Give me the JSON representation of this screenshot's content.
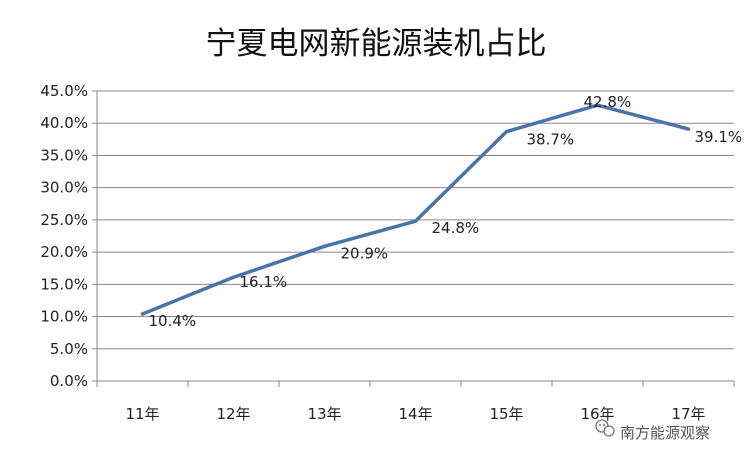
{
  "chart_data": {
    "type": "line",
    "title": "宁夏电网新能源装机占比",
    "categories": [
      "11年",
      "12年",
      "13年",
      "14年",
      "15年",
      "16年",
      "17年"
    ],
    "series": [
      {
        "values": [
          10.4,
          16.1,
          20.9,
          24.8,
          38.7,
          42.8,
          39.1
        ],
        "labels": [
          "10.4%",
          "16.1%",
          "20.9%",
          "24.8%",
          "38.7%",
          "42.8%",
          "39.1%"
        ],
        "color": "#4a73a8"
      }
    ],
    "ylim": [
      0,
      45
    ],
    "yticks": [
      "0.0%",
      "5.0%",
      "10.0%",
      "15.0%",
      "20.0%",
      "25.0%",
      "30.0%",
      "35.0%",
      "40.0%",
      "45.0%"
    ],
    "grid": true,
    "legend": "none"
  },
  "watermark": {
    "text": "南方能源观察",
    "icon": "wechat-icon"
  }
}
